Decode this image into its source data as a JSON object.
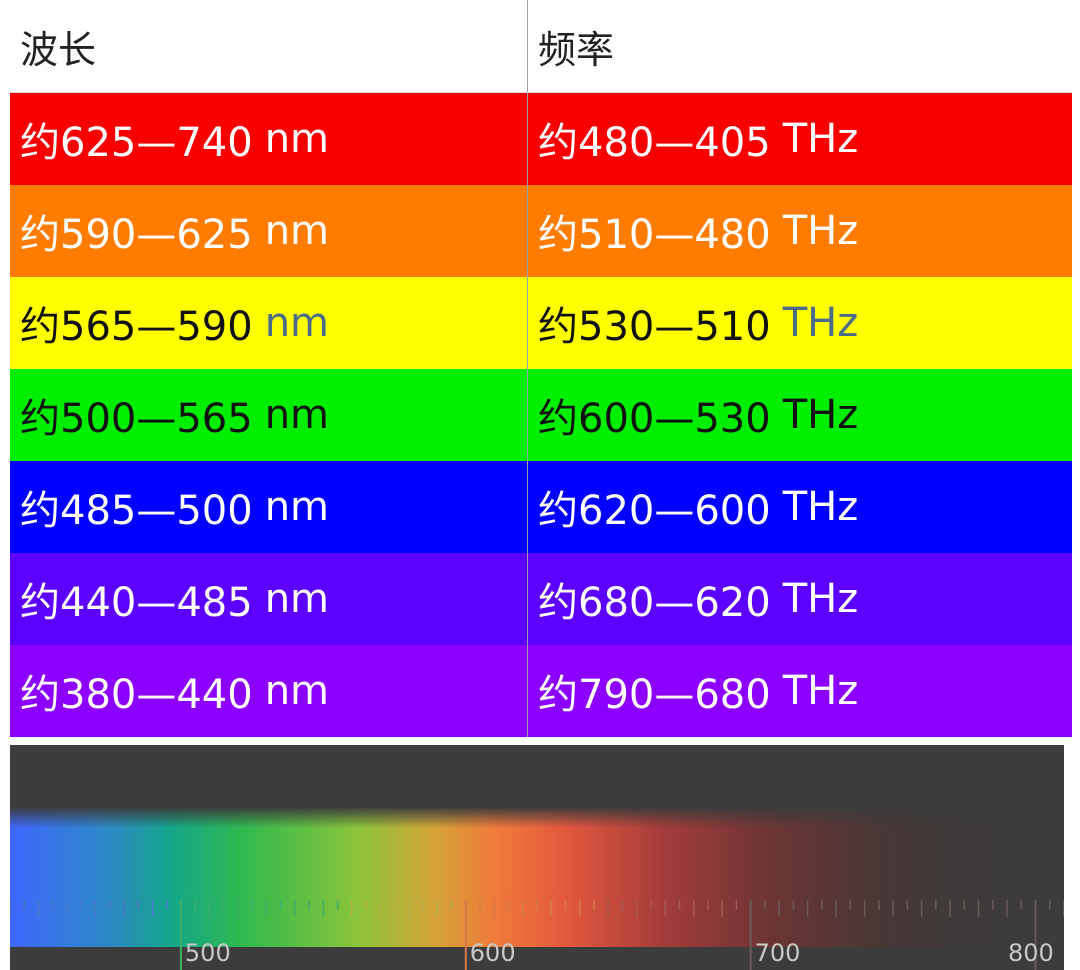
{
  "table": {
    "headers": [
      "波长",
      "频率"
    ],
    "rows": [
      {
        "wavelength": "约625—740",
        "wl_unit": "nm",
        "frequency": "约480—405",
        "fr_unit": "THz",
        "color": "#f90000"
      },
      {
        "wavelength": "约590—625",
        "wl_unit": "nm",
        "frequency": "约510—480",
        "fr_unit": "THz",
        "color": "#ff7c00"
      },
      {
        "wavelength": "约565—590",
        "wl_unit": "nm",
        "frequency": "约530—510",
        "fr_unit": "THz",
        "color": "#ffff00"
      },
      {
        "wavelength": "约500—565",
        "wl_unit": "nm",
        "frequency": "约600—530",
        "fr_unit": "THz",
        "color": "#00ee00"
      },
      {
        "wavelength": "约485—500",
        "wl_unit": "nm",
        "frequency": "约620—600",
        "fr_unit": "THz",
        "color": "#0000ff"
      },
      {
        "wavelength": "约440—485",
        "wl_unit": "nm",
        "frequency": "约680—620",
        "fr_unit": "THz",
        "color": "#5c00ff"
      },
      {
        "wavelength": "约380—440",
        "wl_unit": "nm",
        "frequency": "约790—680",
        "fr_unit": "THz",
        "color": "#8b00ff"
      }
    ]
  },
  "spectrum": {
    "axis_min": 440,
    "axis_max": 810,
    "tick_labels": [
      "500",
      "600",
      "700",
      "800"
    ],
    "background": "#3c3c3c"
  }
}
